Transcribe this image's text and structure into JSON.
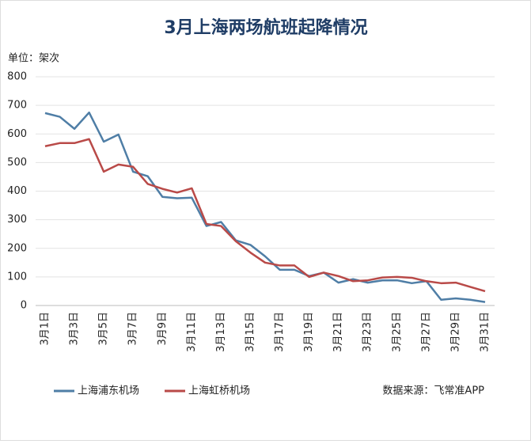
{
  "chart_data": {
    "type": "line",
    "title": "3月上海两场航班起降情况",
    "y_unit_label": "单位：架次",
    "source": "数据来源：飞常准APP",
    "categories": [
      "3月1日",
      null,
      "3月3日",
      null,
      "3月5日",
      null,
      "3月7日",
      null,
      "3月9日",
      null,
      "3月11日",
      null,
      "3月13日",
      null,
      "3月15日",
      null,
      "3月17日",
      null,
      "3月19日",
      null,
      "3月21日",
      null,
      "3月23日",
      null,
      "3月25日",
      null,
      "3月27日",
      null,
      "3月29日",
      null,
      "3月31日"
    ],
    "series": [
      {
        "name": "上海浦东机场",
        "color": "#4f7ea6",
        "values": [
          673,
          660,
          618,
          675,
          573,
          598,
          468,
          452,
          380,
          375,
          377,
          278,
          292,
          228,
          212,
          172,
          125,
          125,
          103,
          115,
          80,
          92,
          80,
          88,
          88,
          78,
          85,
          20,
          25,
          20,
          12
        ]
      },
      {
        "name": "上海虹桥机场",
        "color": "#b94a48",
        "values": [
          557,
          568,
          568,
          582,
          468,
          493,
          485,
          425,
          408,
          395,
          410,
          285,
          278,
          225,
          185,
          150,
          140,
          140,
          100,
          115,
          103,
          85,
          88,
          98,
          100,
          97,
          85,
          78,
          80,
          65,
          50
        ]
      }
    ],
    "ylim": [
      0,
      800
    ],
    "yticks": [
      0,
      100,
      200,
      300,
      400,
      500,
      600,
      700,
      800
    ],
    "grid": true
  }
}
